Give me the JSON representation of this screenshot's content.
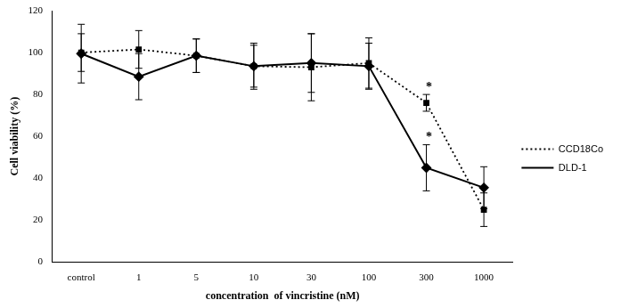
{
  "chart_data": {
    "type": "line",
    "x_label": "concentration  of vincristine (nM)",
    "y_label": "Cell viability (%)",
    "categories": [
      "control",
      "1",
      "5",
      "10",
      "30",
      "100",
      "300",
      "1000"
    ],
    "series": [
      {
        "name": "CCD18Co",
        "color": "#000000",
        "marker": "square",
        "line_style": "dotted",
        "values": [
          100,
          101.5,
          98.5,
          93.5,
          93,
          95,
          76,
          25
        ],
        "errors": [
          9,
          9,
          8,
          10,
          16,
          12,
          4,
          8
        ],
        "significance": [
          null,
          null,
          null,
          null,
          null,
          null,
          "*",
          null
        ]
      },
      {
        "name": "DLD-1",
        "color": "#000000",
        "marker": "diamond",
        "line_style": "solid",
        "values": [
          99.5,
          88.5,
          98.5,
          93.5,
          95,
          93.5,
          45,
          35.5
        ],
        "errors": [
          14,
          11,
          8,
          11,
          14,
          11,
          11,
          10
        ],
        "significance": [
          null,
          null,
          null,
          null,
          null,
          null,
          "*",
          null
        ]
      }
    ],
    "ylim": [
      0,
      120
    ],
    "yticks": [
      0,
      20,
      40,
      60,
      80,
      100,
      120
    ],
    "grid": false,
    "legend": "right"
  }
}
